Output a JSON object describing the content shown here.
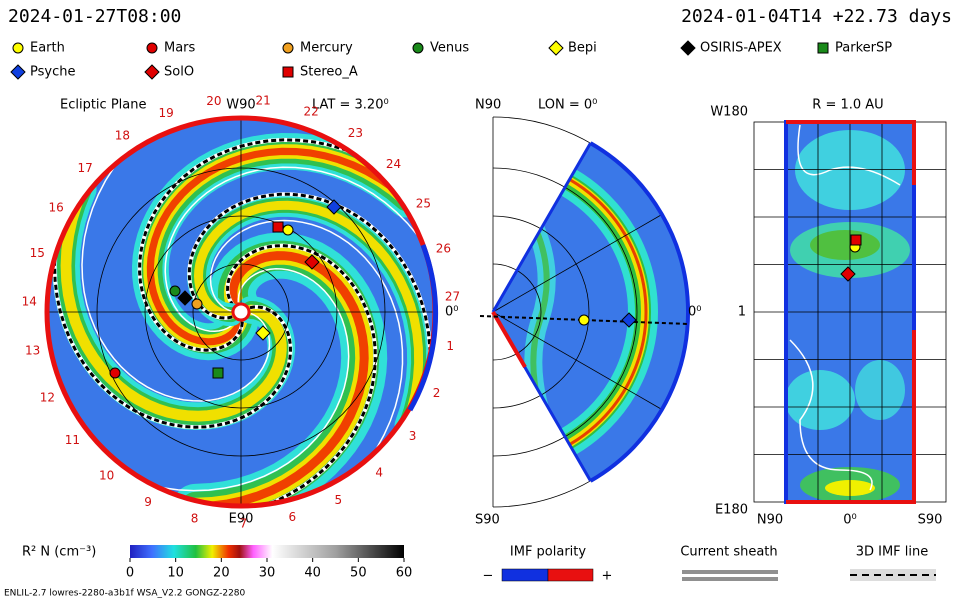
{
  "header": {
    "time": "2024-01-27T08:00",
    "run": "2024-01-04T14 +22.73 days"
  },
  "legend": [
    {
      "name": "Earth",
      "shape": "circle",
      "color": "#ffff00"
    },
    {
      "name": "Mars",
      "shape": "circle",
      "color": "#e00000"
    },
    {
      "name": "Mercury",
      "shape": "circle",
      "color": "#f0a020"
    },
    {
      "name": "Venus",
      "shape": "circle",
      "color": "#1a8a1a"
    },
    {
      "name": "Bepi",
      "shape": "diamond",
      "color": "#ffff00"
    },
    {
      "name": "OSIRIS-APEX",
      "shape": "diamond",
      "color": "#000000"
    },
    {
      "name": "ParkerSP",
      "shape": "square",
      "color": "#1a8a1a"
    },
    {
      "name": "Psyche",
      "shape": "diamond",
      "color": "#1040e0"
    },
    {
      "name": "SolO",
      "shape": "diamond",
      "color": "#e00000"
    },
    {
      "name": "Stereo_A",
      "shape": "square",
      "color": "#e00000"
    }
  ],
  "ecliptic": {
    "title": "Ecliptic Plane",
    "lat": "LAT = 3.20⁰",
    "top": "W90",
    "bottom": "E90",
    "right": "0⁰",
    "longitudes": [
      1,
      2,
      3,
      4,
      5,
      6,
      7,
      8,
      9,
      10,
      11,
      12,
      13,
      14,
      15,
      16,
      17,
      18,
      19,
      20,
      21,
      22,
      23,
      24,
      25,
      26,
      27
    ]
  },
  "meridional": {
    "top": "N90",
    "lon": "LON = 0⁰",
    "bottom": "S90",
    "right": "0⁰"
  },
  "radial": {
    "title": "R = 1.0 AU",
    "top": "W180",
    "middle": "1",
    "bottom": "E180",
    "left": "N90",
    "center": "0⁰",
    "right": "S90"
  },
  "colorbar": {
    "label": "R² N (cm⁻³)",
    "ticks": [
      0,
      10,
      20,
      30,
      40,
      50,
      60
    ]
  },
  "imf": {
    "title": "IMF polarity",
    "minus": "−",
    "plus": "+"
  },
  "current_sheath": "Current sheath",
  "imf_line": "3D IMF line",
  "footer": "ENLIL-2.7 lowres-2280-a3b1f WSA_V2.2 GONGZ-2280"
}
